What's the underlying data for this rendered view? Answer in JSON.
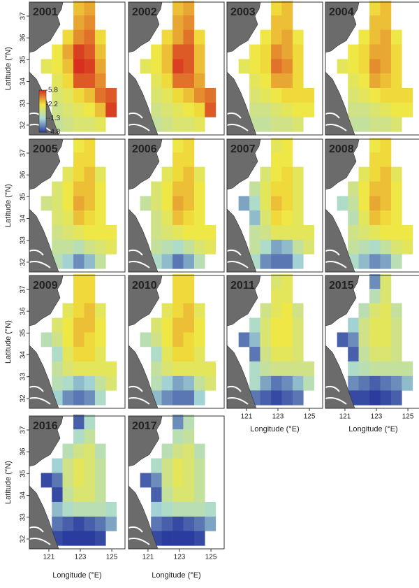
{
  "ylabel": "Latitude (°N)",
  "xlabel": "Longitude (°E)",
  "xticks": [
    121,
    123,
    125
  ],
  "yticks": [
    32,
    33,
    34,
    35,
    36,
    37
  ],
  "xlim": [
    119.76,
    125.84
  ],
  "ylim": [
    31.55,
    37.64
  ],
  "lon_edges": [
    120.5,
    121.19,
    121.87,
    122.56,
    123.24,
    123.93,
    124.61,
    125.3
  ],
  "lat_edges": [
    37.7,
    37.03,
    36.37,
    35.7,
    35.03,
    34.37,
    33.7,
    33.03,
    32.37,
    31.7
  ],
  "colorscale": [
    {
      "value": -4.8,
      "color": "#2b3b9e"
    },
    {
      "value": -1.3,
      "color": "#a9dbd6"
    },
    {
      "value": 2.2,
      "color": "#f2e83c"
    },
    {
      "value": 5.8,
      "color": "#d7301f"
    }
  ],
  "colorbar_ticks": [
    5.8,
    2.2,
    -1.3,
    -4.8
  ],
  "panels": [
    {
      "year": "2001",
      "values": [
        [
          null,
          null,
          null,
          3,
          3.5,
          null,
          null
        ],
        [
          null,
          null,
          null,
          3.5,
          4,
          null,
          null
        ],
        [
          null,
          null,
          2.5,
          4,
          4.5,
          2.5,
          null
        ],
        [
          null,
          2,
          3.5,
          5.5,
          5,
          3,
          null
        ],
        [
          1.5,
          2,
          3,
          5.8,
          5.5,
          3.5,
          null
        ],
        [
          null,
          1.5,
          2.5,
          5,
          5,
          4,
          null
        ],
        [
          null,
          1,
          1.5,
          2.5,
          3,
          4.5,
          5
        ],
        [
          null,
          0.5,
          1,
          1.5,
          2,
          3,
          5.5
        ],
        [
          null,
          0,
          0.5,
          1,
          1,
          1.5,
          null
        ]
      ]
    },
    {
      "year": "2002",
      "values": [
        [
          null,
          null,
          null,
          3,
          3.5,
          null,
          null
        ],
        [
          null,
          null,
          null,
          3.5,
          4,
          null,
          null
        ],
        [
          null,
          null,
          2.5,
          3.5,
          4.5,
          2.5,
          null
        ],
        [
          null,
          2,
          3,
          5,
          5,
          3,
          null
        ],
        [
          1.5,
          2,
          3,
          5.5,
          5,
          3,
          null
        ],
        [
          null,
          1.5,
          2.5,
          4.5,
          4.5,
          3.5,
          null
        ],
        [
          null,
          1,
          1.5,
          2.5,
          3,
          4,
          4.5
        ],
        [
          null,
          0.5,
          1,
          1.5,
          2,
          2.5,
          5
        ],
        [
          null,
          0,
          0.5,
          1,
          1,
          1.5,
          null
        ]
      ]
    },
    {
      "year": "2003",
      "values": [
        [
          null,
          null,
          null,
          2.5,
          3,
          null,
          null
        ],
        [
          null,
          null,
          null,
          3,
          3,
          null,
          null
        ],
        [
          null,
          null,
          2,
          3,
          3.5,
          2,
          null
        ],
        [
          null,
          2,
          2.5,
          4,
          3.5,
          2.5,
          null
        ],
        [
          1.5,
          2,
          2.5,
          4.5,
          4,
          2.5,
          null
        ],
        [
          null,
          1.5,
          2,
          3.5,
          3.5,
          2.5,
          null
        ],
        [
          null,
          1,
          1.5,
          2,
          2.5,
          2.5,
          2.5
        ],
        [
          null,
          0.5,
          0.5,
          1,
          1.5,
          2,
          2
        ],
        [
          null,
          0,
          0,
          0.5,
          0.5,
          1,
          null
        ]
      ]
    },
    {
      "year": "2004",
      "values": [
        [
          null,
          null,
          null,
          2.5,
          3,
          null,
          null
        ],
        [
          null,
          null,
          null,
          3,
          3,
          null,
          null
        ],
        [
          null,
          null,
          2,
          3,
          3.5,
          2,
          null
        ],
        [
          null,
          2,
          2.5,
          3.5,
          3.5,
          2.5,
          null
        ],
        [
          1.5,
          2,
          2.5,
          4,
          3.5,
          2.5,
          null
        ],
        [
          null,
          1.5,
          2,
          3.5,
          3,
          2.5,
          null
        ],
        [
          null,
          1,
          1.5,
          2,
          2.5,
          2.5,
          2.5
        ],
        [
          null,
          0.5,
          0.5,
          1,
          1.5,
          2,
          2
        ],
        [
          null,
          0,
          0,
          0.5,
          0.5,
          1,
          null
        ]
      ]
    },
    {
      "year": "2005",
      "values": [
        [
          null,
          null,
          null,
          2,
          2.5,
          null,
          null
        ],
        [
          null,
          null,
          null,
          2.5,
          2.5,
          null,
          null
        ],
        [
          null,
          null,
          1.5,
          2.5,
          3,
          1.5,
          null
        ],
        [
          null,
          1,
          2,
          3,
          3,
          2,
          null
        ],
        [
          0.5,
          1,
          2,
          3.5,
          3,
          2,
          null
        ],
        [
          null,
          1,
          1.5,
          3,
          2.5,
          2,
          null
        ],
        [
          null,
          0.5,
          1,
          1.5,
          2,
          2,
          2
        ],
        [
          null,
          0,
          0,
          -0.5,
          0.5,
          1,
          1.5
        ],
        [
          null,
          -0.5,
          -1.5,
          -3,
          -2,
          0,
          null
        ]
      ]
    },
    {
      "year": "2006",
      "values": [
        [
          null,
          null,
          null,
          2,
          2.5,
          null,
          null
        ],
        [
          null,
          null,
          null,
          2.5,
          2.5,
          null,
          null
        ],
        [
          null,
          null,
          1.5,
          2.5,
          3,
          1.5,
          null
        ],
        [
          null,
          1,
          2,
          3,
          3,
          2,
          null
        ],
        [
          0,
          1,
          2,
          3.5,
          3,
          2,
          null
        ],
        [
          null,
          0.5,
          1.5,
          3,
          2.5,
          2,
          null
        ],
        [
          null,
          0.5,
          1,
          1.5,
          2,
          2,
          2
        ],
        [
          null,
          0,
          -0.5,
          -1,
          0,
          1,
          1.5
        ],
        [
          null,
          -1,
          -2,
          -3.5,
          -2.5,
          -0.5,
          null
        ]
      ]
    },
    {
      "year": "2007",
      "values": [
        [
          null,
          null,
          null,
          1.5,
          2,
          null,
          null
        ],
        [
          null,
          null,
          null,
          2,
          2,
          null,
          null
        ],
        [
          null,
          null,
          1,
          2,
          2.5,
          1.5,
          null
        ],
        [
          null,
          0,
          1.5,
          2.5,
          2.5,
          1.5,
          null
        ],
        [
          -2.5,
          -1,
          1.5,
          3,
          2.5,
          1.5,
          null
        ],
        [
          null,
          -2,
          1,
          2.5,
          2,
          1.5,
          null
        ],
        [
          null,
          0,
          0.5,
          1.5,
          1.5,
          1.5,
          1.5
        ],
        [
          null,
          0,
          -1,
          -2.5,
          -2,
          0,
          1
        ],
        [
          null,
          -1,
          -3,
          -3.5,
          -3.5,
          -1.5,
          null
        ]
      ]
    },
    {
      "year": "2008",
      "values": [
        [
          null,
          null,
          null,
          2,
          2.5,
          null,
          null
        ],
        [
          null,
          null,
          null,
          2.5,
          2.5,
          null,
          null
        ],
        [
          null,
          null,
          1.5,
          2.5,
          3,
          1.5,
          null
        ],
        [
          null,
          0.5,
          2,
          3,
          3,
          2,
          null
        ],
        [
          -1,
          0,
          2,
          3.5,
          3,
          2,
          null
        ],
        [
          null,
          -0.5,
          1.5,
          3,
          2.5,
          2,
          null
        ],
        [
          null,
          0.5,
          1,
          1.5,
          2,
          2,
          2
        ],
        [
          null,
          0,
          -0.5,
          -1,
          0,
          1,
          1.5
        ],
        [
          null,
          -1,
          -2,
          -3,
          -2.5,
          -0.5,
          null
        ]
      ]
    },
    {
      "year": "2009",
      "values": [
        [
          null,
          null,
          null,
          2.5,
          2.5,
          null,
          null
        ],
        [
          null,
          null,
          null,
          2.5,
          2.5,
          null,
          null
        ],
        [
          null,
          null,
          1.5,
          2.5,
          3,
          1.5,
          null
        ],
        [
          null,
          1,
          2,
          3,
          3,
          2,
          null
        ],
        [
          -0.5,
          0.5,
          2,
          3,
          2.5,
          2,
          null
        ],
        [
          null,
          -1,
          1.5,
          2.5,
          2.5,
          1.5,
          null
        ],
        [
          null,
          0,
          1,
          1.5,
          1.5,
          1.5,
          1.5
        ],
        [
          null,
          -0.5,
          -1,
          -2,
          -1.5,
          0,
          1
        ],
        [
          null,
          -1.5,
          -3,
          -3.5,
          -3,
          -1,
          null
        ]
      ]
    },
    {
      "year": "2010",
      "values": [
        [
          null,
          null,
          null,
          2.5,
          2.5,
          null,
          null
        ],
        [
          null,
          null,
          null,
          2.5,
          2.5,
          null,
          null
        ],
        [
          null,
          null,
          1.5,
          2.5,
          3,
          1.5,
          null
        ],
        [
          null,
          1,
          2,
          3,
          3,
          2,
          null
        ],
        [
          -0.5,
          0.5,
          2,
          3,
          2.5,
          2,
          null
        ],
        [
          null,
          -1,
          1.5,
          2.5,
          2.5,
          1.5,
          null
        ],
        [
          null,
          0,
          1,
          1.5,
          1.5,
          1.5,
          1.5
        ],
        [
          null,
          -0.5,
          -1.5,
          -2.5,
          -2,
          0,
          1
        ],
        [
          null,
          -2,
          -3,
          -3.5,
          -3.5,
          -1.5,
          null
        ]
      ]
    },
    {
      "year": "2011",
      "values": [
        [
          null,
          null,
          null,
          1,
          1.5,
          null,
          null
        ],
        [
          null,
          null,
          null,
          1.5,
          1.5,
          null,
          null
        ],
        [
          null,
          null,
          0.5,
          1.5,
          2,
          0.5,
          null
        ],
        [
          null,
          -1,
          1,
          2,
          2,
          1,
          null
        ],
        [
          -3.5,
          -2,
          1,
          2,
          2,
          1,
          null
        ],
        [
          null,
          -3.5,
          0.5,
          1.5,
          1.5,
          1,
          null
        ],
        [
          null,
          -1,
          0,
          0.5,
          0.5,
          0.5,
          0.5
        ],
        [
          null,
          -1,
          -2.5,
          -3.5,
          -3,
          -2,
          -0.5
        ],
        [
          null,
          -3.5,
          -4,
          -4.5,
          -4,
          -3.5,
          null
        ]
      ]
    },
    {
      "year": "2015",
      "values": [
        [
          null,
          null,
          null,
          -3,
          1,
          null,
          null
        ],
        [
          null,
          null,
          null,
          -0.5,
          1,
          null,
          null
        ],
        [
          null,
          null,
          -0.5,
          1,
          1.5,
          0,
          null
        ],
        [
          null,
          -1.5,
          0.5,
          1.5,
          1.5,
          0.5,
          null
        ],
        [
          -4,
          -3,
          0.5,
          1.5,
          1.5,
          0.5,
          null
        ],
        [
          null,
          -4,
          0,
          1,
          1,
          0.5,
          null
        ],
        [
          null,
          -1,
          -0.5,
          0,
          0,
          0,
          0
        ],
        [
          null,
          -3,
          -3.5,
          -4,
          -3.5,
          -3,
          -2
        ],
        [
          null,
          -4.5,
          -4.5,
          -4.8,
          -4.5,
          -4,
          null
        ]
      ]
    },
    {
      "year": "2016",
      "values": [
        [
          null,
          null,
          null,
          -4,
          -1,
          null,
          null
        ],
        [
          null,
          null,
          null,
          -1,
          0,
          null,
          null
        ],
        [
          null,
          null,
          -0.5,
          0.5,
          1,
          -0.5,
          null
        ],
        [
          null,
          -1.5,
          0.5,
          1.5,
          1,
          0,
          null
        ],
        [
          -4.5,
          -3.5,
          0.5,
          1.5,
          1,
          0,
          null
        ],
        [
          null,
          -4.5,
          0,
          1,
          1,
          0,
          null
        ],
        [
          null,
          -2,
          -1,
          -0.5,
          -0.5,
          -0.5,
          -1
        ],
        [
          null,
          -3.5,
          -4,
          -4.5,
          -4,
          -3.5,
          -2.5
        ],
        [
          null,
          -4.5,
          -4.8,
          -4.8,
          -4.8,
          -4.5,
          null
        ]
      ]
    },
    {
      "year": "2017",
      "values": [
        [
          null,
          null,
          null,
          -3,
          -0.5,
          null,
          null
        ],
        [
          null,
          null,
          null,
          -0.5,
          0,
          null,
          null
        ],
        [
          null,
          null,
          -0.5,
          0.5,
          1,
          -0.5,
          null
        ],
        [
          null,
          -1,
          0.5,
          1.5,
          1,
          0,
          null
        ],
        [
          -4,
          -3,
          0.5,
          1.5,
          1,
          0,
          null
        ],
        [
          null,
          -4,
          0,
          1,
          1,
          0,
          null
        ],
        [
          null,
          -1.5,
          -1,
          -0.5,
          -0.5,
          -0.5,
          -1
        ],
        [
          null,
          -3.5,
          -4,
          -4.5,
          -4,
          -3.5,
          -2.5
        ],
        [
          null,
          -4.5,
          -4.8,
          -4.8,
          -4.8,
          -4.5,
          null
        ]
      ]
    }
  ]
}
